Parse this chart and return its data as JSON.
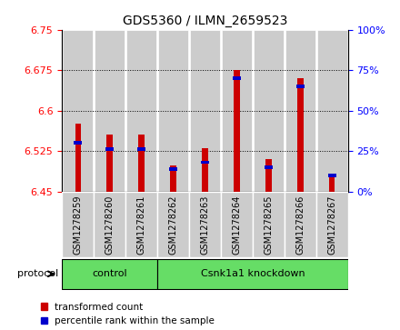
{
  "title": "GDS5360 / ILMN_2659523",
  "samples": [
    "GSM1278259",
    "GSM1278260",
    "GSM1278261",
    "GSM1278262",
    "GSM1278263",
    "GSM1278264",
    "GSM1278265",
    "GSM1278266",
    "GSM1278267"
  ],
  "red_values": [
    6.575,
    6.555,
    6.555,
    6.498,
    6.53,
    6.675,
    6.51,
    6.66,
    6.478
  ],
  "blue_values": [
    30,
    26,
    26,
    14,
    18,
    70,
    15,
    65,
    10
  ],
  "ymin": 6.45,
  "ymax": 6.75,
  "yticks": [
    6.45,
    6.525,
    6.6,
    6.675,
    6.75
  ],
  "right_yticks": [
    0,
    25,
    50,
    75,
    100
  ],
  "right_yticklabels": [
    "0%",
    "25%",
    "50%",
    "75%",
    "100%"
  ],
  "groups": [
    {
      "label": "control",
      "start": 0,
      "end": 3
    },
    {
      "label": "Csnk1a1 knockdown",
      "start": 3,
      "end": 9
    }
  ],
  "group_color": "#66dd66",
  "bar_width": 0.18,
  "red_color": "#cc0000",
  "blue_color": "#0000cc",
  "cell_bg": "#cccccc",
  "protocol_label": "protocol",
  "legend_red": "transformed count",
  "legend_blue": "percentile rank within the sample"
}
